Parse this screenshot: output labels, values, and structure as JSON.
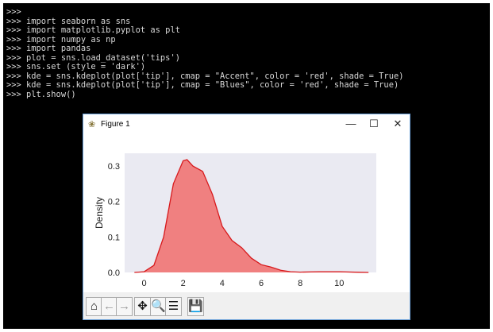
{
  "terminal": {
    "lines": [
      ">>>",
      ">>> import seaborn as sns",
      ">>> import matplotlib.pyplot as plt",
      ">>> import numpy as np",
      ">>> import pandas",
      ">>> plot = sns.load_dataset('tips')",
      ">>> sns.set (style = 'dark')",
      ">>> kde = sns.kdeplot(plot['tip'], cmap = \"Accent\", color = 'red', shade = True)",
      ">>> kde = sns.kdeplot(plot['tip'], cmap = \"Blues\", color = 'red', shade = True)",
      ">>> plt.show()"
    ]
  },
  "window": {
    "title": "Figure 1",
    "minimize": "—",
    "maximize": "☐",
    "close": "✕"
  },
  "toolbar": [
    {
      "name": "home-icon",
      "glyph": "⌂"
    },
    {
      "name": "back-icon",
      "glyph": "←"
    },
    {
      "name": "forward-icon",
      "glyph": "→"
    },
    {
      "name": "pan-icon",
      "glyph": "✥"
    },
    {
      "name": "zoom-icon",
      "glyph": "🔍"
    },
    {
      "name": "configure-icon",
      "glyph": "☰"
    },
    {
      "name": "save-icon",
      "glyph": "💾"
    }
  ],
  "chart_data": {
    "type": "area",
    "ylabel": "Density",
    "xlabel": "",
    "xlim": [
      -1,
      11.9
    ],
    "ylim": [
      0,
      0.336
    ],
    "xticks": [
      "0",
      "2",
      "4",
      "6",
      "8",
      "10"
    ],
    "yticks": [
      "0.0",
      "0.1",
      "0.2",
      "0.3"
    ],
    "grid": false,
    "colors": {
      "fill": "#f08080",
      "line": "#d7191c",
      "background": "#eaeaf2"
    },
    "x": [
      -0.5,
      0,
      0.5,
      1,
      1.5,
      2,
      2.2,
      2.5,
      3,
      3.5,
      4,
      4.5,
      5,
      5.5,
      6,
      6.5,
      7,
      7.5,
      8,
      9,
      10,
      11,
      11.5
    ],
    "y": [
      0,
      0.002,
      0.02,
      0.1,
      0.25,
      0.315,
      0.318,
      0.3,
      0.285,
      0.22,
      0.13,
      0.09,
      0.07,
      0.04,
      0.022,
      0.015,
      0.006,
      0.002,
      0.001,
      0.002,
      0.002,
      0.0005,
      0
    ]
  }
}
